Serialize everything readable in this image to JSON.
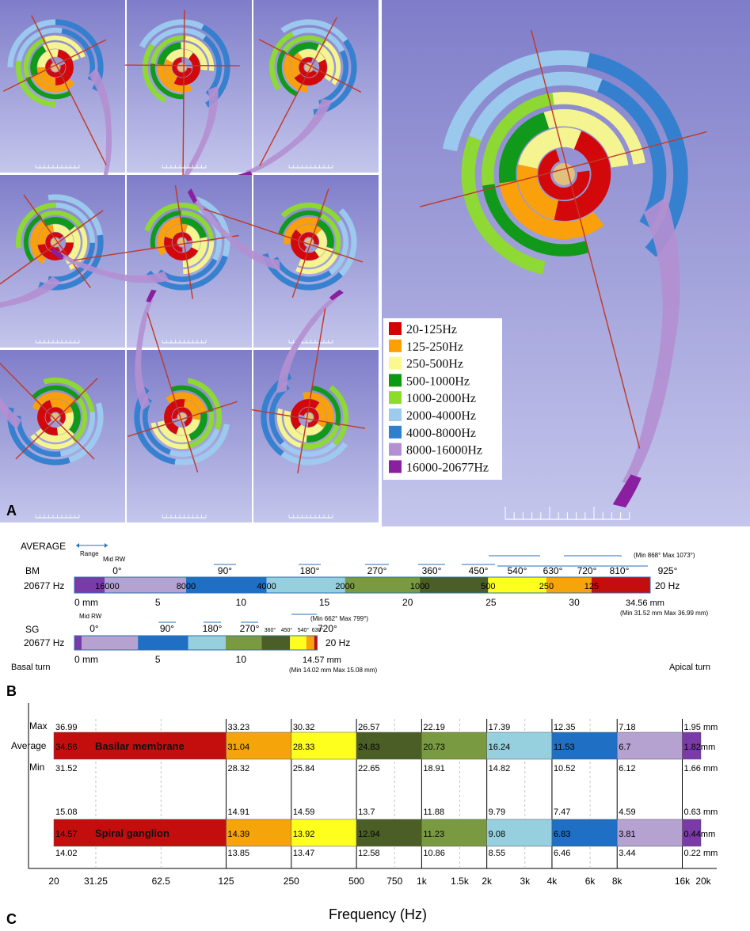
{
  "figure": {
    "panel_a_letter": "A",
    "panel_b_letter": "B",
    "panel_c_letter": "C"
  },
  "legend": [
    {
      "label": "20-125Hz",
      "color": "#d50000"
    },
    {
      "label": "125-250Hz",
      "color": "#ffa000"
    },
    {
      "label": "250-500Hz",
      "color": "#fafa8c"
    },
    {
      "label": "500-1000Hz",
      "color": "#0a9a10"
    },
    {
      "label": "1000-2000Hz",
      "color": "#8ddc2a"
    },
    {
      "label": "2000-4000Hz",
      "color": "#9ccbee"
    },
    {
      "label": "4000-8000Hz",
      "color": "#2f7fcf"
    },
    {
      "label": "8000-16000Hz",
      "color": "#b48fd2"
    },
    {
      "label": "16000-20677Hz",
      "color": "#8a1fa0"
    }
  ],
  "panel_b": {
    "average_label": "AVERAGE",
    "range_label": "Range",
    "bm": {
      "row_label": "BM",
      "left_freq": "20677 Hz",
      "right_freq": "20 Hz",
      "mid_rw": "Mid RW",
      "angles": [
        "0°",
        "90°",
        "180°",
        "270°",
        "360°",
        "450°",
        "540°",
        "630°",
        "720°",
        "810°",
        "925°"
      ],
      "angle_range_note": "(Min 868° Max 1073°)",
      "inside_labels": [
        "16000",
        "8000",
        "4000",
        "2000",
        "1000",
        "500",
        "250",
        "125"
      ],
      "axis_ticks": [
        "0 mm",
        "5",
        "10",
        "15",
        "20",
        "25",
        "30"
      ],
      "end_length": "34.56 mm",
      "end_range": "(Min 31.52 mm Max 36.99 mm)"
    },
    "sg": {
      "row_label": "SG",
      "left_freq": "20677 Hz",
      "right_freq": "20 Hz",
      "mid_rw": "Mid RW",
      "angles": [
        "0°",
        "90°",
        "180°",
        "270°",
        "360°",
        "450°",
        "540°",
        "630°"
      ],
      "end_angle": "720°",
      "angle_range_note": "(Min 662° Max 799°)",
      "axis_ticks": [
        "0 mm",
        "5",
        "10"
      ],
      "end_length": "14.57 mm",
      "end_range": "(Min 14.02 mm Max 15.08 mm)",
      "basal": "Basal turn",
      "apical": "Apical turn"
    }
  },
  "chart_data": {
    "type": "bar",
    "title": "",
    "xlabel": "Frequency (Hz)",
    "ylabel": "",
    "x_scale": "log",
    "x_ticks": [
      20,
      31.25,
      62.5,
      125,
      250,
      500,
      750,
      1000,
      1500,
      2000,
      3000,
      4000,
      6000,
      8000,
      16000,
      20000
    ],
    "x_tick_labels": [
      "20",
      "31.25",
      "62.5",
      "125",
      "250",
      "500",
      "750",
      "1k",
      "1.5k",
      "2k",
      "3k",
      "4k",
      "6k",
      "8k",
      "16k",
      "20k"
    ],
    "band_edges_hz": [
      20,
      125,
      250,
      500,
      1000,
      2000,
      4000,
      8000,
      16000,
      20677
    ],
    "band_colors": [
      "#c40d0d",
      "#f5a50a",
      "#ffff1e",
      "#4a5e26",
      "#7a9a42",
      "#96cfde",
      "#1f6fc4",
      "#b5a2d0",
      "#7a3aa8"
    ],
    "row_labels": {
      "max": "Max",
      "average": "Average",
      "min": "Min"
    },
    "unit": "mm",
    "series": [
      {
        "name": "Basilar membrane",
        "max": [
          "36.99",
          "33.23",
          "30.32",
          "26.57",
          "22.19",
          "17.39",
          "12.35",
          "7.18",
          "1.95"
        ],
        "average": [
          "34.56",
          "31.04",
          "28.33",
          "24.83",
          "20.73",
          "16.24",
          "11.53",
          "6.7",
          "1.82"
        ],
        "min": [
          "31.52",
          "28.32",
          "25.84",
          "22.65",
          "18.91",
          "14.82",
          "10.52",
          "6.12",
          "1.66"
        ]
      },
      {
        "name": "Spiral ganglion",
        "max": [
          "15.08",
          "14.91",
          "14.59",
          "13.7",
          "11.88",
          "9.79",
          "7.47",
          "4.59",
          "0.63"
        ],
        "average": [
          "14.57",
          "14.39",
          "13.92",
          "12.94",
          "11.23",
          "9.08",
          "6.83",
          "3.81",
          "0.44"
        ],
        "min": [
          "14.02",
          "13.85",
          "13.47",
          "12.58",
          "10.86",
          "8.55",
          "6.46",
          "3.44",
          "0.22"
        ]
      }
    ]
  }
}
